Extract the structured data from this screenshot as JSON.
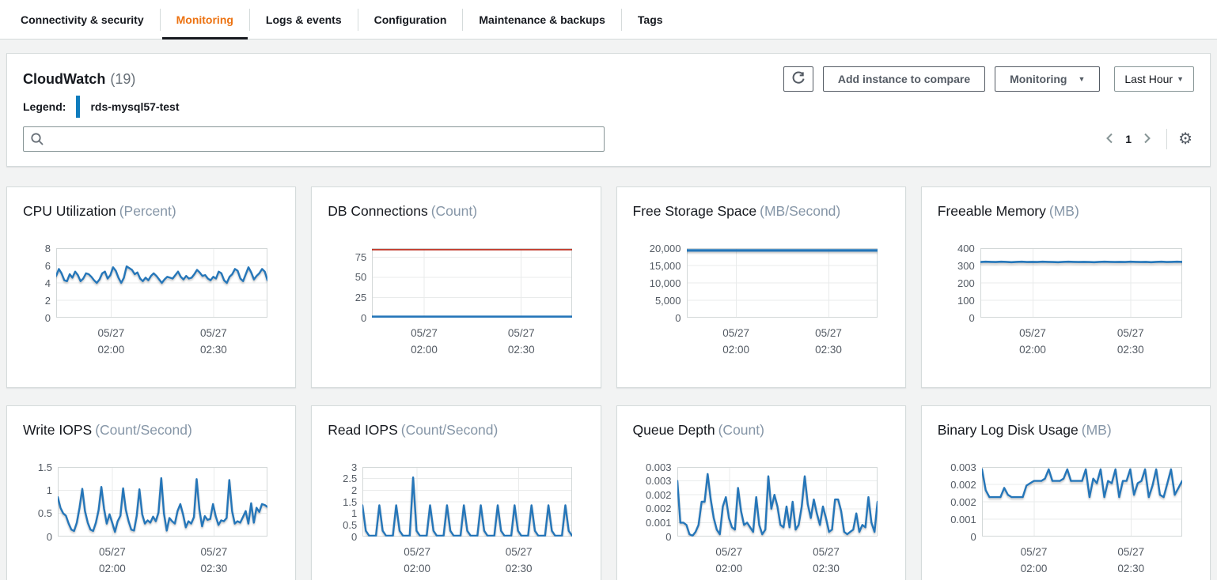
{
  "tabs": {
    "items": [
      {
        "label": "Connectivity & security",
        "active": false
      },
      {
        "label": "Monitoring",
        "active": true
      },
      {
        "label": "Logs & events",
        "active": false
      },
      {
        "label": "Configuration",
        "active": false
      },
      {
        "label": "Maintenance & backups",
        "active": false
      },
      {
        "label": "Tags",
        "active": false
      }
    ]
  },
  "panel": {
    "title": "CloudWatch",
    "count": "(19)",
    "legend_label": "Legend:",
    "legend_instance": "rds-mysql57-test",
    "add_instance_label": "Add instance to compare",
    "monitoring_label": "Monitoring",
    "time_range_label": "Last Hour",
    "caret": "▼",
    "search": {
      "value": "",
      "placeholder": ""
    },
    "pagination": {
      "page": "1"
    }
  },
  "colors": {
    "accent_orange": "#ec7211",
    "tab_underline": "#16191f",
    "line_blue": "#2576b9",
    "threshold_red": "#bb2a1a",
    "legend_blue": "#0f7cbd",
    "grid": "#e9ebeb",
    "plot_border": "#d3d8d8",
    "tick_text": "#545b64",
    "unit_gray": "#8696a7",
    "page_bg": "#f2f3f3"
  },
  "chart_data": [
    {
      "type": "line",
      "title": "CPU Utilization",
      "unit": "(Percent)",
      "ylim": [
        0,
        8
      ],
      "ylw": 38,
      "yticks": [
        {
          "label": "8",
          "v": 8
        },
        {
          "label": "6",
          "v": 6
        },
        {
          "label": "4",
          "v": 4
        },
        {
          "label": "2",
          "v": 2
        },
        {
          "label": "0",
          "v": 0
        }
      ],
      "xticks": [
        {
          "l1": "05/27",
          "l2": "02:00",
          "pos": 0.26
        },
        {
          "l1": "05/27",
          "l2": "02:30",
          "pos": 0.745
        }
      ],
      "series": [
        {
          "name": "rds-mysql57-test",
          "color": "#2576b9",
          "width": 2.4,
          "values": [
            4.8,
            5.6,
            5.1,
            4.3,
            4.2,
            5.0,
            4.6,
            5.3,
            4.9,
            4.2,
            4.5,
            5.1,
            5.0,
            4.7,
            4.3,
            4.0,
            4.4,
            5.1,
            5.3,
            4.5,
            4.9,
            5.8,
            5.4,
            4.6,
            4.0,
            4.6,
            5.9,
            5.7,
            5.5,
            5.0,
            5.2,
            4.5,
            4.2,
            4.6,
            4.3,
            4.8,
            5.1,
            4.8,
            4.4,
            4.0,
            4.4,
            4.7,
            4.6,
            4.5,
            4.9,
            5.3,
            4.7,
            4.4,
            4.8,
            4.5,
            4.6,
            5.0,
            5.5,
            5.2,
            4.8,
            4.9,
            4.5,
            4.3,
            4.7,
            4.5,
            5.3,
            5.1,
            4.3,
            4.0,
            4.7,
            5.0,
            5.6,
            5.4,
            4.5,
            4.2,
            5.0,
            5.8,
            5.2,
            4.4,
            4.8,
            5.1,
            5.6,
            5.3,
            4.3
          ]
        }
      ]
    },
    {
      "type": "line",
      "title": "DB Connections",
      "unit": "(Count)",
      "ylim": [
        0,
        86
      ],
      "ylw": 52,
      "yticks": [
        {
          "label": "75",
          "v": 75
        },
        {
          "label": "50",
          "v": 50
        },
        {
          "label": "25",
          "v": 25
        },
        {
          "label": "0",
          "v": 0
        }
      ],
      "xticks": [
        {
          "l1": "05/27",
          "l2": "02:00",
          "pos": 0.26
        },
        {
          "l1": "05/27",
          "l2": "02:30",
          "pos": 0.745
        }
      ],
      "series": [
        {
          "name": "threshold",
          "color": "#bb2a1a",
          "width": 1.8,
          "shadow": false,
          "values": [
            84,
            84
          ]
        },
        {
          "name": "rds-mysql57-test",
          "color": "#2576b9",
          "width": 3.2,
          "values": [
            0.6,
            0.6
          ]
        }
      ]
    },
    {
      "type": "line",
      "title": "Free Storage Space",
      "unit": "(MB/Second)",
      "ylim": [
        0,
        20000
      ],
      "ylw": 64,
      "yticks": [
        {
          "label": "20,000",
          "v": 20000
        },
        {
          "label": "15,000",
          "v": 15000
        },
        {
          "label": "10,000",
          "v": 10000
        },
        {
          "label": "5,000",
          "v": 5000
        },
        {
          "label": "0",
          "v": 0
        }
      ],
      "xticks": [
        {
          "l1": "05/27",
          "l2": "02:00",
          "pos": 0.26
        },
        {
          "l1": "05/27",
          "l2": "02:30",
          "pos": 0.745
        }
      ],
      "series": [
        {
          "name": "rds-mysql57-test",
          "color": "#2576b9",
          "width": 3.2,
          "values": [
            19350,
            19350
          ]
        }
      ]
    },
    {
      "type": "line",
      "title": "Freeable Memory",
      "unit": "(MB)",
      "ylim": [
        0,
        400
      ],
      "ylw": 50,
      "yticks": [
        {
          "label": "400",
          "v": 400
        },
        {
          "label": "300",
          "v": 300
        },
        {
          "label": "200",
          "v": 200
        },
        {
          "label": "100",
          "v": 100
        },
        {
          "label": "0",
          "v": 0
        }
      ],
      "xticks": [
        {
          "l1": "05/27",
          "l2": "02:00",
          "pos": 0.26
        },
        {
          "l1": "05/27",
          "l2": "02:30",
          "pos": 0.745
        }
      ],
      "series": [
        {
          "name": "rds-mysql57-test",
          "color": "#2576b9",
          "width": 2.6,
          "values": [
            320,
            322,
            321,
            320,
            322,
            321,
            319,
            321,
            322,
            320,
            321,
            320,
            322,
            321,
            320,
            319,
            321,
            322,
            321,
            320,
            321,
            320,
            319,
            321,
            322,
            321,
            320,
            321,
            320,
            322,
            321,
            320,
            321,
            319,
            321,
            322,
            320,
            321,
            322,
            321
          ]
        }
      ]
    },
    {
      "type": "line",
      "title": "Write IOPS",
      "unit": "(Count/Second)",
      "ylim": [
        0,
        1.5
      ],
      "ylw": 40,
      "yticks": [
        {
          "label": "1.5",
          "v": 1.5
        },
        {
          "label": "1",
          "v": 1
        },
        {
          "label": "0.5",
          "v": 0.5
        },
        {
          "label": "0",
          "v": 0
        }
      ],
      "xticks": [
        {
          "l1": "05/27",
          "l2": "02:00",
          "pos": 0.26
        },
        {
          "l1": "05/27",
          "l2": "02:30",
          "pos": 0.745
        }
      ],
      "series": [
        {
          "name": "rds-mysql57-test",
          "color": "#2576b9",
          "width": 2.4,
          "values": [
            0.85,
            0.62,
            0.5,
            0.45,
            0.28,
            0.15,
            0.12,
            0.3,
            0.62,
            1.03,
            0.55,
            0.3,
            0.15,
            0.12,
            0.3,
            0.57,
            1.07,
            0.6,
            0.28,
            0.48,
            0.3,
            0.1,
            0.33,
            0.45,
            1.04,
            0.58,
            0.33,
            0.15,
            0.13,
            0.45,
            1.02,
            0.48,
            0.28,
            0.35,
            0.3,
            0.43,
            0.33,
            0.52,
            1.26,
            0.5,
            0.13,
            0.4,
            0.33,
            0.28,
            0.55,
            0.7,
            0.48,
            0.2,
            0.33,
            0.28,
            0.42,
            1.24,
            0.58,
            0.22,
            0.44,
            0.36,
            0.38,
            0.7,
            0.44,
            0.25,
            0.35,
            0.33,
            0.4,
            1.22,
            0.55,
            0.28,
            0.33,
            0.3,
            0.42,
            0.55,
            0.28,
            0.72,
            0.3,
            0.62,
            0.53,
            0.7,
            0.68,
            0.64
          ]
        }
      ]
    },
    {
      "type": "line",
      "title": "Read IOPS",
      "unit": "(Count/Second)",
      "ylim": [
        0,
        3
      ],
      "ylw": 40,
      "yticks": [
        {
          "label": "3",
          "v": 3
        },
        {
          "label": "2.5",
          "v": 2.5
        },
        {
          "label": "2",
          "v": 2
        },
        {
          "label": "1.5",
          "v": 1.5
        },
        {
          "label": "1",
          "v": 1
        },
        {
          "label": "0.5",
          "v": 0.5
        },
        {
          "label": "0",
          "v": 0
        }
      ],
      "xticks": [
        {
          "l1": "05/27",
          "l2": "02:00",
          "pos": 0.26
        },
        {
          "l1": "05/27",
          "l2": "02:30",
          "pos": 0.745
        }
      ],
      "series": [
        {
          "name": "rds-mysql57-test",
          "color": "#2576b9",
          "width": 2.4,
          "values": [
            1.35,
            0.25,
            0.02,
            0.02,
            0.02,
            1.35,
            0.25,
            0.02,
            0.02,
            0.02,
            1.35,
            0.25,
            0.02,
            0.02,
            0.02,
            2.55,
            0.25,
            0.02,
            0.02,
            0.02,
            1.35,
            0.25,
            0.02,
            0.02,
            0.02,
            1.35,
            0.25,
            0.02,
            0.02,
            0.02,
            1.35,
            0.25,
            0.02,
            0.02,
            0.02,
            1.35,
            0.25,
            0.02,
            0.02,
            0.02,
            1.35,
            0.25,
            0.02,
            0.02,
            0.02,
            1.35,
            0.25,
            0.02,
            0.02,
            0.02,
            1.35,
            0.25,
            0.02,
            0.02,
            0.02,
            1.35,
            0.25,
            0.02,
            0.02,
            0.02,
            1.35,
            0.25,
            0.02
          ]
        }
      ]
    },
    {
      "type": "line",
      "title": "Queue Depth",
      "unit": "(Count)",
      "ylim": [
        0,
        0.003
      ],
      "ylw": 52,
      "yticks": [
        {
          "label": "0.003",
          "v": 0.003
        },
        {
          "label": "0.003",
          "v": 0.0024
        },
        {
          "label": "0.002",
          "v": 0.0018
        },
        {
          "label": "0.002",
          "v": 0.0012
        },
        {
          "label": "0.001",
          "v": 0.0006
        },
        {
          "label": "0",
          "v": 0
        }
      ],
      "xticks": [
        {
          "l1": "05/27",
          "l2": "02:00",
          "pos": 0.26
        },
        {
          "l1": "05/27",
          "l2": "02:30",
          "pos": 0.745
        }
      ],
      "series": [
        {
          "name": "rds-mysql57-test",
          "color": "#2576b9",
          "width": 2.4,
          "values": [
            0.0024,
            0.0006,
            0.0006,
            0.0005,
            0.0001,
            0.0,
            0.0002,
            0.0005,
            0.0015,
            0.0015,
            0.0027,
            0.0016,
            0.0008,
            0.0003,
            0.0001,
            0.0013,
            0.0017,
            0.0008,
            0.0004,
            0.0003,
            0.0021,
            0.0011,
            0.0005,
            0.0006,
            0.0004,
            0.0002,
            0.0017,
            0.0005,
            0.0001,
            0.0003,
            0.0026,
            0.0012,
            0.0018,
            0.0013,
            0.0005,
            0.0004,
            0.0013,
            0.0004,
            0.0015,
            0.0003,
            0.0005,
            0.0013,
            0.0026,
            0.0014,
            0.0008,
            0.0016,
            0.001,
            0.0005,
            0.0013,
            0.0008,
            0.0002,
            0.0003,
            0.0016,
            0.0016,
            0.0011,
            0.0002,
            0.0001,
            0.0002,
            0.0003,
            0.001,
            0.0002,
            0.0005,
            0.0004,
            0.0017,
            0.0006,
            0.0002,
            0.0015
          ]
        }
      ]
    },
    {
      "type": "line",
      "title": "Binary Log Disk Usage",
      "unit": "(MB)",
      "ylim": [
        0,
        0.003
      ],
      "ylw": 52,
      "yticks": [
        {
          "label": "0.003",
          "v": 0.003
        },
        {
          "label": "0.002",
          "v": 0.00225
        },
        {
          "label": "0.002",
          "v": 0.0015
        },
        {
          "label": "0.001",
          "v": 0.00075
        },
        {
          "label": "0",
          "v": 0
        }
      ],
      "xticks": [
        {
          "l1": "05/27",
          "l2": "02:00",
          "pos": 0.26
        },
        {
          "l1": "05/27",
          "l2": "02:30",
          "pos": 0.745
        }
      ],
      "series": [
        {
          "name": "rds-mysql57-test",
          "color": "#2576b9",
          "width": 2.4,
          "values": [
            0.0029,
            0.002,
            0.0017,
            0.0017,
            0.0017,
            0.0017,
            0.0021,
            0.0018,
            0.0017,
            0.0017,
            0.0017,
            0.0017,
            0.0022,
            0.0023,
            0.0024,
            0.0024,
            0.0024,
            0.0025,
            0.0029,
            0.0024,
            0.0024,
            0.0024,
            0.0025,
            0.0029,
            0.0024,
            0.0024,
            0.0024,
            0.0024,
            0.0029,
            0.0017,
            0.0025,
            0.0023,
            0.0029,
            0.0017,
            0.0024,
            0.0023,
            0.0029,
            0.0017,
            0.0024,
            0.0024,
            0.0029,
            0.0018,
            0.0023,
            0.0024,
            0.0029,
            0.0017,
            0.0022,
            0.0029,
            0.0018,
            0.0017,
            0.0023,
            0.0029,
            0.0018,
            0.0021,
            0.0024
          ]
        }
      ]
    }
  ]
}
